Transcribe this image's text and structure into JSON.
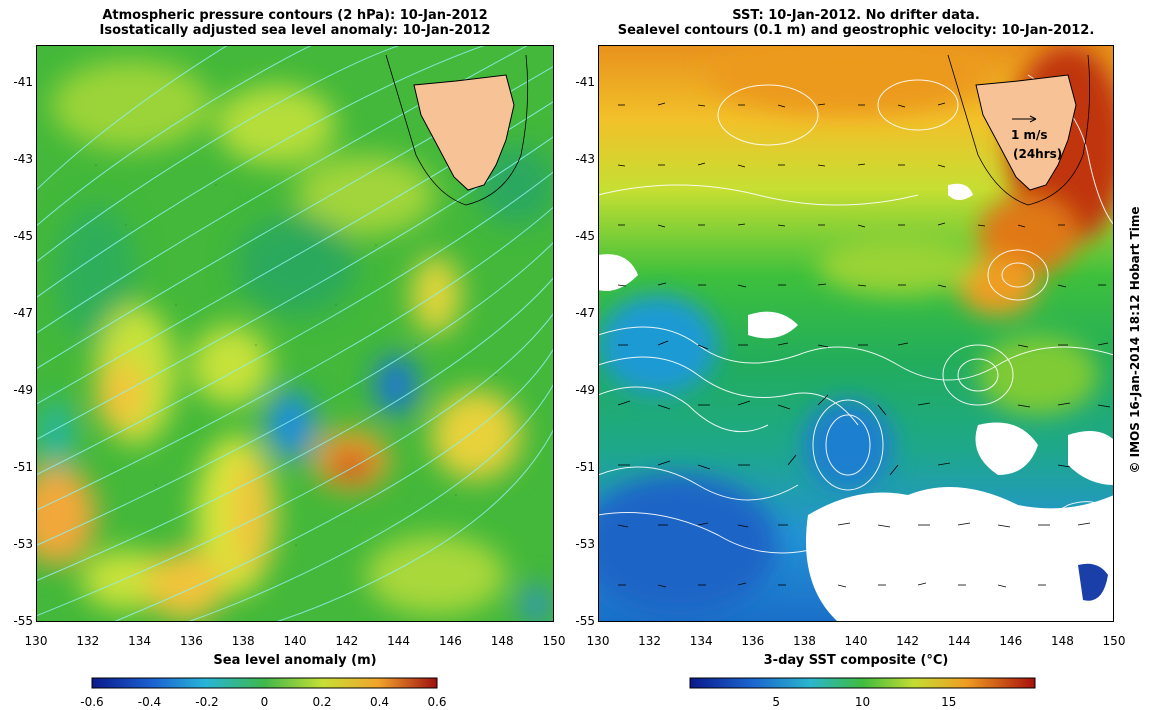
{
  "left_panel": {
    "title_line1": "Atmospheric pressure contours (2 hPa): 10-Jan-2012",
    "title_line2": "Isostatically adjusted sea level anomaly: 10-Jan-2012",
    "x_ticks": [
      "130",
      "132",
      "134",
      "136",
      "138",
      "140",
      "142",
      "144",
      "146",
      "148",
      "150"
    ],
    "y_ticks": [
      "-41",
      "-43",
      "-45",
      "-47",
      "-49",
      "-51",
      "-53",
      "-55"
    ],
    "colorbar_label": "Sea level anomaly (m)",
    "colorbar_ticks": [
      "-0.6",
      "-0.4",
      "-0.2",
      "0",
      "0.2",
      "0.4",
      "0.6"
    ],
    "colorbar_range": [
      -0.6,
      0.6
    ]
  },
  "right_panel": {
    "title_line1": "SST: 10-Jan-2012. No drifter data.",
    "title_line2": "Sealevel contours (0.1 m) and geostrophic velocity: 10-Jan-2012.",
    "x_ticks": [
      "130",
      "132",
      "134",
      "136",
      "138",
      "140",
      "142",
      "144",
      "146",
      "148",
      "150"
    ],
    "y_ticks": [
      "-41",
      "-43",
      "-45",
      "-47",
      "-49",
      "-51",
      "-53",
      "-55"
    ],
    "colorbar_label": "3-day SST composite (°C)",
    "colorbar_ticks": [
      "5",
      "10",
      "15"
    ],
    "scale_arrow_label": "1 m/s",
    "scale_arrow_sublabel": "(24hrs)"
  },
  "map_extent": {
    "lon": [
      130,
      150
    ],
    "lat": [
      -55,
      -40
    ]
  },
  "credit": "© IMOS 16-Jan-2014 18:12 Hobart Time",
  "colors": {
    "land": "#f7c295",
    "sla_background": "#43b83a",
    "sst_warm": "#e88a1a",
    "sst_cold": "#1f7fd8",
    "contour_cyan": "#8ff0f0",
    "contour_white": "#ffffff"
  }
}
